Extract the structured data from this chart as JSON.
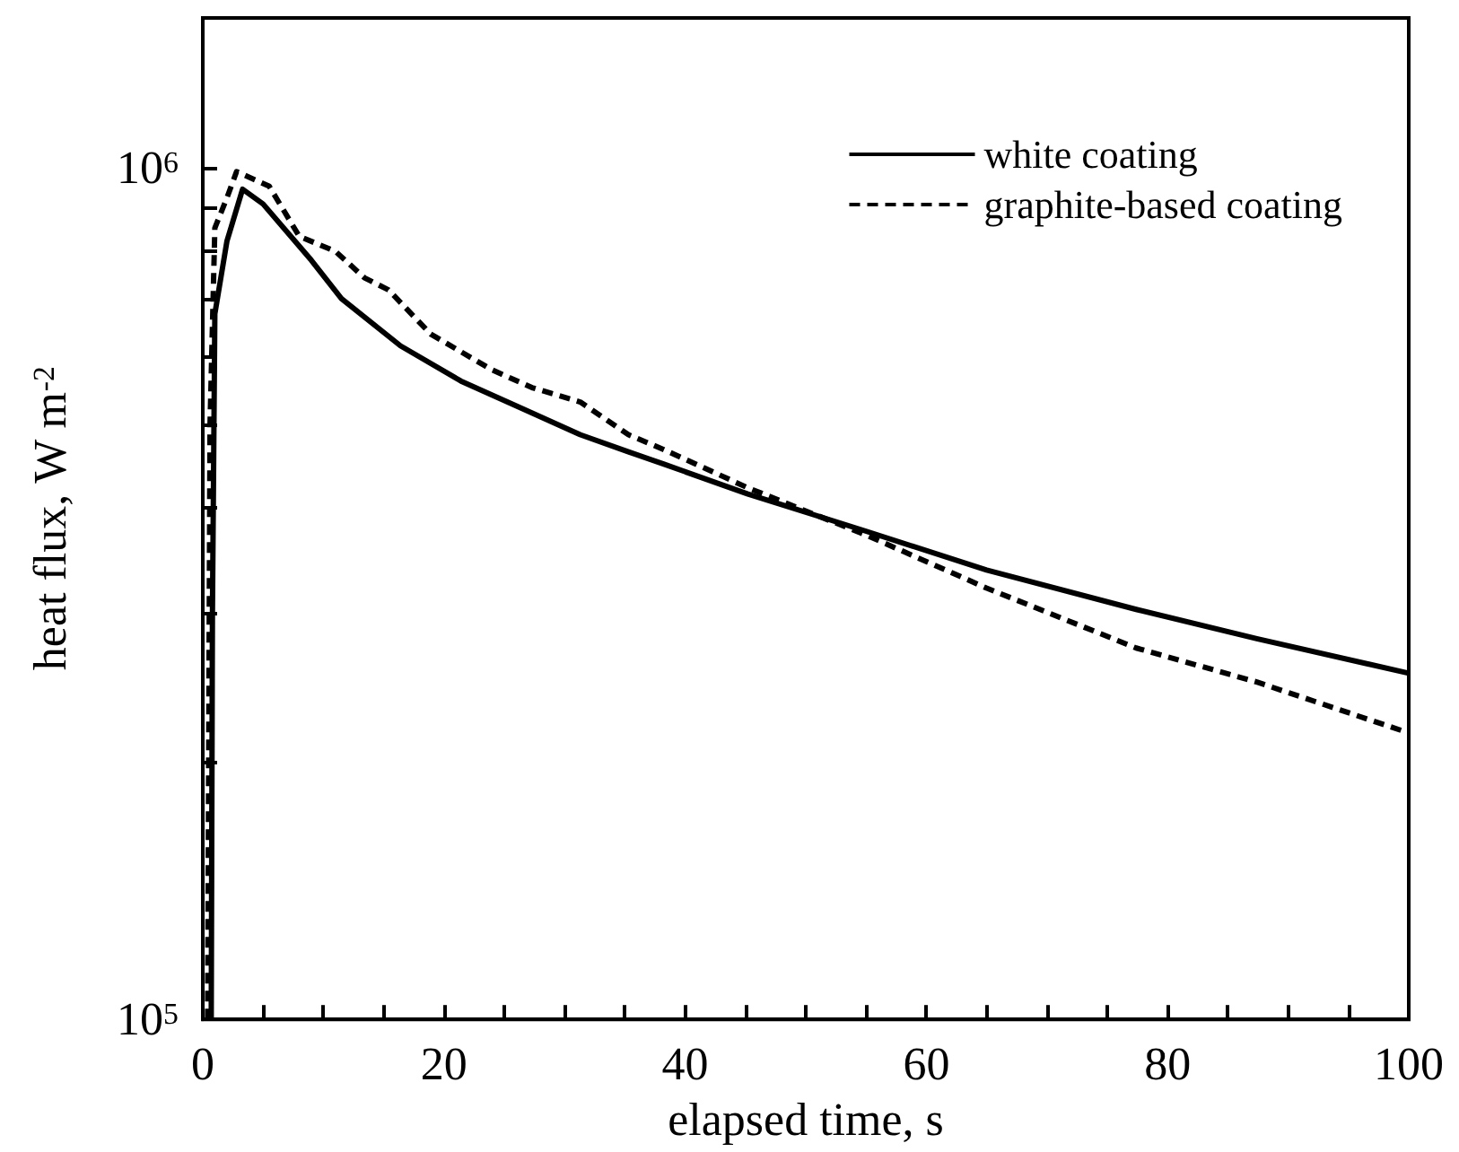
{
  "chart_data": {
    "type": "line",
    "xlabel": "elapsed time, s",
    "ylabel": "heat flux, W m$^{-2}$",
    "log": "y",
    "grid": false,
    "legend": "top right",
    "marker": "none",
    "xlim": [
      0,
      100
    ],
    "xticks": [
      0,
      {
        "value": 5,
        "label": null
      },
      {
        "value": 10,
        "label": null
      },
      {
        "value": 15,
        "label": null
      },
      20,
      {
        "value": 25,
        "label": null
      },
      {
        "value": 30,
        "label": null
      },
      {
        "value": 35,
        "label": null
      },
      40,
      {
        "value": 45,
        "label": null
      },
      {
        "value": 50,
        "label": null
      },
      {
        "value": 55,
        "label": null
      },
      60,
      {
        "value": 65,
        "label": null
      },
      {
        "value": 70,
        "label": null
      },
      {
        "value": 75,
        "label": null
      },
      80,
      {
        "value": 85,
        "label": null
      },
      {
        "value": 90,
        "label": null
      },
      {
        "value": 95,
        "label": null
      },
      100
    ],
    "ylim": [
      100000,
      1500000
    ],
    "yticks": [
      {
        "value": 100000,
        "label": "10$^{5}$"
      },
      {
        "value": 200000,
        "label": null
      },
      {
        "value": 300000,
        "label": null
      },
      {
        "value": 400000,
        "label": null
      },
      {
        "value": 500000,
        "label": null
      },
      {
        "value": 600000,
        "label": null
      },
      {
        "value": 700000,
        "label": null
      },
      {
        "value": 800000,
        "label": null
      },
      {
        "value": 900000,
        "label": null
      },
      {
        "value": 1000000,
        "label": "10$^{6}$"
      }
    ],
    "series": [
      {
        "name": "white coating",
        "color": "#000000",
        "line_style": "solid",
        "x": [
          0.7,
          0.8,
          1.0,
          2.0,
          3.3,
          5.0,
          9.0,
          11.5,
          16.4,
          21.4,
          26.3,
          31.3,
          35.3,
          38.2,
          45.2,
          55.1,
          65.0,
          77.4,
          87.4,
          100
        ],
        "values": [
          100000,
          300000,
          674000,
          820000,
          944000,
          907000,
          779000,
          702000,
          618000,
          562000,
          523000,
          486000,
          464000,
          449000,
          414000,
          374000,
          337000,
          303000,
          280000,
          255000
        ]
      },
      {
        "name": "graphite-based coating",
        "color": "#000000",
        "line_style": "dashed",
        "x": [
          0.4,
          0.6,
          1.0,
          2.0,
          2.8,
          5.5,
          8.0,
          11.0,
          13.4,
          15.4,
          18.9,
          23.9,
          27.3,
          31.3,
          35.3,
          38.2,
          45.2,
          55.1,
          65.0,
          77.4,
          87.4,
          100
        ],
        "values": [
          100000,
          500000,
          850000,
          922000,
          990000,
          952000,
          831000,
          798000,
          743000,
          719000,
          638000,
          580000,
          552000,
          531000,
          486000,
          467000,
          421000,
          370000,
          321000,
          273000,
          249000,
          217000
        ]
      }
    ]
  }
}
